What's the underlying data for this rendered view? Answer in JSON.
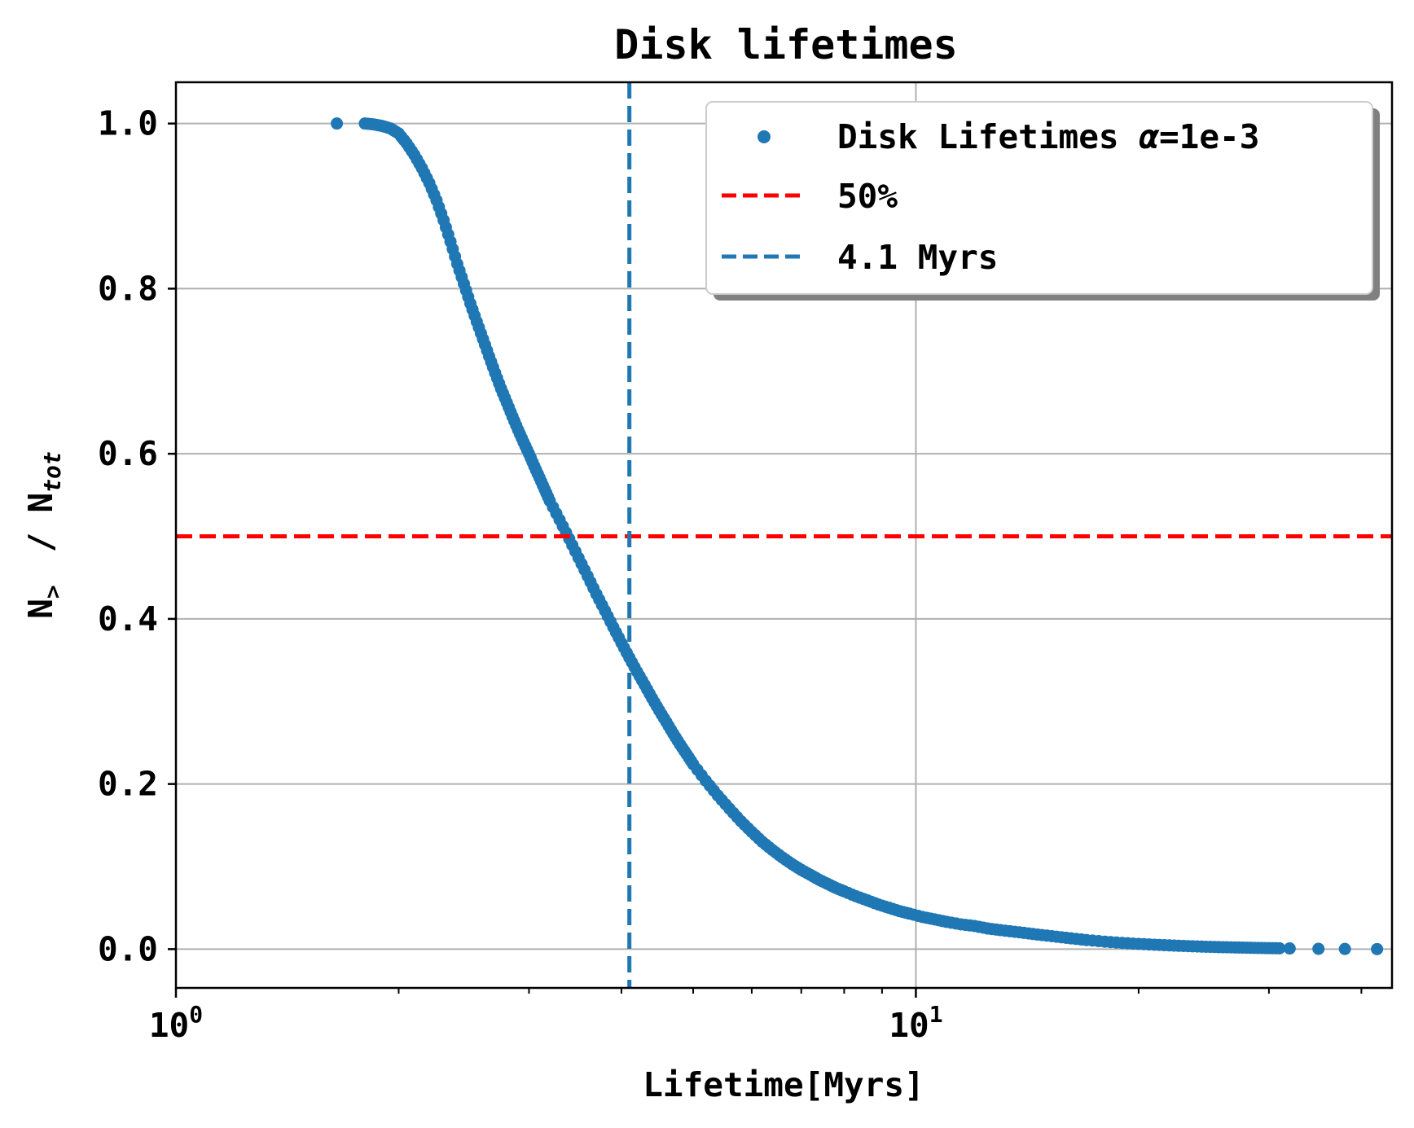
{
  "chart_data": {
    "type": "scatter",
    "title": "Disk lifetimes",
    "xlabel": "Lifetime[Myrs]",
    "ylabel": {
      "n_text": "N",
      "n_subscript": ">",
      "separator": "/",
      "tot_text": "N",
      "tot_subscript": "tot"
    },
    "x_scale": "log",
    "xlim": [
      1.0,
      44.0
    ],
    "ylim": [
      -0.047,
      1.05
    ],
    "x_ticks": [
      {
        "base": "10",
        "exponent": "0",
        "value": 1
      },
      {
        "base": "10",
        "exponent": "1",
        "value": 10
      }
    ],
    "y_ticks": [
      "0.0",
      "0.2",
      "0.4",
      "0.6",
      "0.8",
      "1.0"
    ],
    "grid": true,
    "legend_position": "upper right",
    "legend": [
      {
        "kind": "marker",
        "label_prefix": "Disk Lifetimes ",
        "label_symbol": "α",
        "label_suffix": "=1e-3",
        "color": "#1f77b4"
      },
      {
        "kind": "dashed-line",
        "label": "50%",
        "color": "#ff0000"
      },
      {
        "kind": "dashed-line",
        "label": "4.1 Myrs",
        "color": "#1f77b4"
      }
    ],
    "series": [
      {
        "name": "Disk Lifetimes α=1e-3",
        "color": "#1f77b4",
        "marker": "circle",
        "x": [
          1.65,
          1.8,
          1.85,
          1.9,
          1.95,
          2.0,
          2.05,
          2.1,
          2.15,
          2.2,
          2.25,
          2.3,
          2.35,
          2.4,
          2.45,
          2.5,
          2.55,
          2.6,
          2.65,
          2.7,
          2.75,
          2.8,
          2.85,
          2.9,
          2.95,
          3.0,
          3.05,
          3.1,
          3.15,
          3.2,
          3.3,
          3.4,
          3.5,
          3.6,
          3.7,
          3.8,
          3.9,
          4.0,
          4.1,
          4.2,
          4.3,
          4.4,
          4.5,
          4.6,
          4.7,
          4.8,
          4.9,
          5.0,
          5.2,
          5.4,
          5.6,
          5.8,
          6.0,
          6.2,
          6.4,
          6.6,
          6.8,
          7.0,
          7.2,
          7.4,
          7.6,
          7.8,
          8.0,
          8.3,
          8.6,
          8.9,
          9.2,
          9.5,
          9.8,
          10.2,
          10.6,
          11.0,
          11.5,
          12.0,
          12.5,
          13.0,
          13.6,
          14.2,
          14.8,
          15.5,
          16.2,
          17.0,
          18.0,
          19.0,
          20.0,
          21.0,
          22.0,
          23.0,
          24.0,
          25.0,
          26.0,
          27.0,
          28.0,
          29.0,
          30.0,
          31.0,
          32.0,
          35.0,
          38.0,
          42.0
        ],
        "y": [
          1.0,
          1.0,
          0.999,
          0.997,
          0.994,
          0.988,
          0.976,
          0.962,
          0.946,
          0.928,
          0.907,
          0.883,
          0.857,
          0.83,
          0.806,
          0.782,
          0.76,
          0.739,
          0.718,
          0.698,
          0.679,
          0.662,
          0.645,
          0.629,
          0.614,
          0.6,
          0.585,
          0.571,
          0.557,
          0.543,
          0.52,
          0.497,
          0.474,
          0.452,
          0.43,
          0.41,
          0.39,
          0.371,
          0.353,
          0.336,
          0.32,
          0.304,
          0.289,
          0.275,
          0.261,
          0.248,
          0.236,
          0.224,
          0.204,
          0.186,
          0.17,
          0.155,
          0.142,
          0.13,
          0.12,
          0.111,
          0.103,
          0.096,
          0.09,
          0.084,
          0.079,
          0.074,
          0.07,
          0.064,
          0.059,
          0.054,
          0.05,
          0.046,
          0.043,
          0.039,
          0.036,
          0.033,
          0.03,
          0.028,
          0.025,
          0.023,
          0.021,
          0.019,
          0.017,
          0.015,
          0.013,
          0.011,
          0.009,
          0.0075,
          0.0063,
          0.0053,
          0.0045,
          0.0038,
          0.0032,
          0.0027,
          0.0023,
          0.002,
          0.0017,
          0.0014,
          0.0012,
          0.001,
          0.0008,
          0.0004,
          0.0002,
          0.0
        ]
      }
    ],
    "reference_lines": [
      {
        "orientation": "horizontal",
        "value": 0.5,
        "color": "#ff0000",
        "style": "dashed"
      },
      {
        "orientation": "vertical",
        "value": 4.1,
        "color": "#1f77b4",
        "style": "dashed"
      }
    ]
  }
}
